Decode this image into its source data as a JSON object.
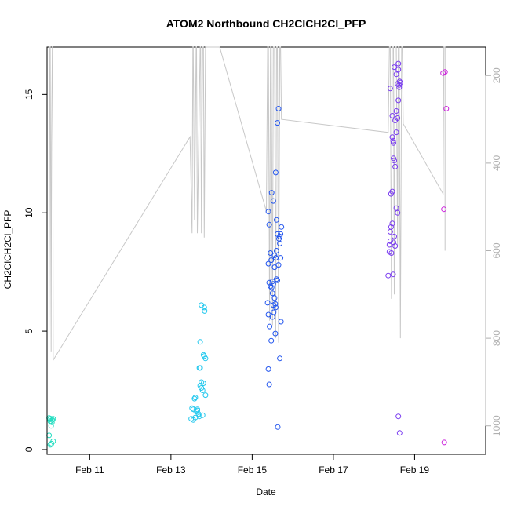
{
  "chart_data": {
    "type": "scatter",
    "title": "ATOM2 Northbound CH2ClCH2Cl_PFP",
    "xlabel": "Date",
    "ylabel": "CH2ClCH2Cl_PFP",
    "x_unit": "day of February",
    "xlim": [
      9.95,
      20.75
    ],
    "ylim": [
      -0.2,
      17.0
    ],
    "x_ticks": [
      11,
      13,
      15,
      17,
      19
    ],
    "x_tick_labels": [
      "Feb 11",
      "Feb 13",
      "Feb 15",
      "Feb 17",
      "Feb 19"
    ],
    "y_ticks": [
      0,
      5,
      10,
      15
    ],
    "y_tick_labels": [
      "0",
      "5",
      "10",
      "15"
    ],
    "right_axis": {
      "ylim": [
        1065,
        135
      ],
      "ticks": [
        200,
        400,
        600,
        800,
        1000
      ],
      "tick_labels": [
        "200",
        "400",
        "600",
        "800",
        "1000"
      ],
      "color": "#b0b0b0"
    },
    "grid": false,
    "series": [
      {
        "color": "#22ddc0",
        "points": [
          [
            10.0,
            1.33
          ],
          [
            10.02,
            1.28
          ],
          [
            10.05,
            1.3
          ],
          [
            10.08,
            1.25
          ],
          [
            10.1,
            1.3
          ],
          [
            10.03,
            1.2
          ],
          [
            10.07,
            1.15
          ],
          [
            10.05,
            1.0
          ],
          [
            10.0,
            0.6
          ],
          [
            10.1,
            0.35
          ],
          [
            10.06,
            0.25
          ],
          [
            10.03,
            0.2
          ]
        ]
      },
      {
        "color": "#22c8ee",
        "points": [
          [
            13.52,
            1.75
          ],
          [
            13.55,
            1.7
          ],
          [
            13.58,
            2.15
          ],
          [
            13.6,
            2.2
          ],
          [
            13.62,
            1.6
          ],
          [
            13.65,
            1.65
          ],
          [
            13.68,
            1.5
          ],
          [
            13.7,
            3.45
          ],
          [
            13.72,
            4.55
          ],
          [
            13.75,
            6.1
          ],
          [
            13.78,
            2.5
          ],
          [
            13.8,
            2.8
          ],
          [
            13.82,
            6.0
          ],
          [
            13.83,
            5.85
          ],
          [
            13.72,
            2.7
          ],
          [
            13.75,
            2.6
          ],
          [
            13.8,
            4.0
          ],
          [
            13.82,
            3.95
          ],
          [
            13.85,
            3.85
          ],
          [
            13.85,
            2.3
          ],
          [
            13.6,
            1.35
          ],
          [
            13.55,
            1.25
          ],
          [
            13.7,
            1.4
          ],
          [
            13.78,
            1.45
          ],
          [
            13.5,
            1.3
          ],
          [
            13.65,
            1.7
          ],
          [
            13.72,
            3.45
          ],
          [
            13.75,
            2.85
          ]
        ]
      },
      {
        "color": "#2255ee",
        "points": [
          [
            15.4,
            10.05
          ],
          [
            15.42,
            9.5
          ],
          [
            15.45,
            8.3
          ],
          [
            15.48,
            10.85
          ],
          [
            15.5,
            7.1
          ],
          [
            15.52,
            7.0
          ],
          [
            15.55,
            8.2
          ],
          [
            15.58,
            11.7
          ],
          [
            15.6,
            9.7
          ],
          [
            15.62,
            13.8
          ],
          [
            15.65,
            14.4
          ],
          [
            15.68,
            9.0
          ],
          [
            15.7,
            8.1
          ],
          [
            15.72,
            9.4
          ],
          [
            15.42,
            7.05
          ],
          [
            15.45,
            6.9
          ],
          [
            15.48,
            6.85
          ],
          [
            15.5,
            6.6
          ],
          [
            15.52,
            6.1
          ],
          [
            15.55,
            6.4
          ],
          [
            15.58,
            6.0
          ],
          [
            15.6,
            7.2
          ],
          [
            15.62,
            7.15
          ],
          [
            15.65,
            7.8
          ],
          [
            15.68,
            8.7
          ],
          [
            15.7,
            9.1
          ],
          [
            15.38,
            6.2
          ],
          [
            15.4,
            5.7
          ],
          [
            15.43,
            5.2
          ],
          [
            15.47,
            4.6
          ],
          [
            15.5,
            5.6
          ],
          [
            15.53,
            5.8
          ],
          [
            15.57,
            4.9
          ],
          [
            15.62,
            9.1
          ],
          [
            15.66,
            8.9
          ],
          [
            15.71,
            5.4
          ],
          [
            15.4,
            3.4
          ],
          [
            15.42,
            2.75
          ],
          [
            15.63,
            0.95
          ],
          [
            15.68,
            3.85
          ],
          [
            15.55,
            7.7
          ],
          [
            15.58,
            8.1
          ],
          [
            15.52,
            10.5
          ],
          [
            15.6,
            8.4
          ],
          [
            15.4,
            7.85
          ],
          [
            15.47,
            8.0
          ],
          [
            15.57,
            6.15
          ]
        ]
      },
      {
        "color": "#7a3cf0",
        "points": [
          [
            18.4,
            15.25
          ],
          [
            18.45,
            14.1
          ],
          [
            18.5,
            16.15
          ],
          [
            18.52,
            13.9
          ],
          [
            18.55,
            15.85
          ],
          [
            18.58,
            15.45
          ],
          [
            18.6,
            16.3
          ],
          [
            18.62,
            15.4
          ],
          [
            18.65,
            15.5
          ],
          [
            18.42,
            10.8
          ],
          [
            18.45,
            10.9
          ],
          [
            18.48,
            12.3
          ],
          [
            18.5,
            12.2
          ],
          [
            18.52,
            11.95
          ],
          [
            18.55,
            14.3
          ],
          [
            18.58,
            14.0
          ],
          [
            18.6,
            14.75
          ],
          [
            18.62,
            15.3
          ],
          [
            18.4,
            9.2
          ],
          [
            18.42,
            9.4
          ],
          [
            18.45,
            9.55
          ],
          [
            18.48,
            8.75
          ],
          [
            18.5,
            9.0
          ],
          [
            18.52,
            8.6
          ],
          [
            18.55,
            10.2
          ],
          [
            18.58,
            10.0
          ],
          [
            18.38,
            8.65
          ],
          [
            18.4,
            8.8
          ],
          [
            18.43,
            8.3
          ],
          [
            18.47,
            7.4
          ],
          [
            18.55,
            13.4
          ],
          [
            18.6,
            16.05
          ],
          [
            18.63,
            15.55
          ],
          [
            18.45,
            13.2
          ],
          [
            18.48,
            12.95
          ],
          [
            18.6,
            1.4
          ],
          [
            18.63,
            0.7
          ],
          [
            18.38,
            8.35
          ],
          [
            18.35,
            7.35
          ],
          [
            18.47,
            13.05
          ]
        ]
      },
      {
        "color": "#cc22dd",
        "points": [
          [
            19.7,
            15.9
          ],
          [
            19.75,
            15.95
          ],
          [
            19.72,
            10.15
          ],
          [
            19.78,
            14.4
          ],
          [
            19.73,
            0.3
          ]
        ]
      }
    ],
    "altitude_trace": {
      "color": "#c8c8c8",
      "points": [
        [
          10.0,
          780
        ],
        [
          10.02,
          130
        ],
        [
          10.03,
          130
        ],
        [
          10.05,
          830
        ],
        [
          10.06,
          360
        ],
        [
          10.08,
          130
        ],
        [
          10.09,
          130
        ],
        [
          10.1,
          850
        ],
        [
          13.47,
          340
        ],
        [
          13.52,
          560
        ],
        [
          13.54,
          130
        ],
        [
          13.55,
          130
        ],
        [
          13.58,
          530
        ],
        [
          13.62,
          130
        ],
        [
          13.63,
          130
        ],
        [
          13.65,
          560
        ],
        [
          13.72,
          130
        ],
        [
          13.73,
          130
        ],
        [
          13.75,
          560
        ],
        [
          13.78,
          130
        ],
        [
          13.8,
          130
        ],
        [
          13.82,
          570
        ],
        [
          13.85,
          130
        ],
        [
          14.2,
          130
        ],
        [
          15.35,
          510
        ],
        [
          15.38,
          130
        ],
        [
          15.4,
          130
        ],
        [
          15.43,
          760
        ],
        [
          15.45,
          130
        ],
        [
          15.47,
          130
        ],
        [
          15.5,
          770
        ],
        [
          15.52,
          130
        ],
        [
          15.55,
          130
        ],
        [
          15.58,
          800
        ],
        [
          15.6,
          130
        ],
        [
          15.62,
          130
        ],
        [
          15.65,
          810
        ],
        [
          15.68,
          130
        ],
        [
          15.7,
          130
        ],
        [
          15.72,
          300
        ],
        [
          18.35,
          330
        ],
        [
          18.38,
          130
        ],
        [
          18.4,
          130
        ],
        [
          18.43,
          710
        ],
        [
          18.45,
          130
        ],
        [
          18.48,
          130
        ],
        [
          18.5,
          700
        ],
        [
          18.52,
          130
        ],
        [
          18.55,
          130
        ],
        [
          18.58,
          590
        ],
        [
          18.6,
          130
        ],
        [
          18.62,
          130
        ],
        [
          18.65,
          800
        ],
        [
          18.68,
          130
        ],
        [
          18.7,
          130
        ],
        [
          18.72,
          310
        ],
        [
          19.7,
          470
        ],
        [
          19.72,
          130
        ],
        [
          19.75,
          130
        ],
        [
          19.75,
          600
        ]
      ]
    }
  }
}
